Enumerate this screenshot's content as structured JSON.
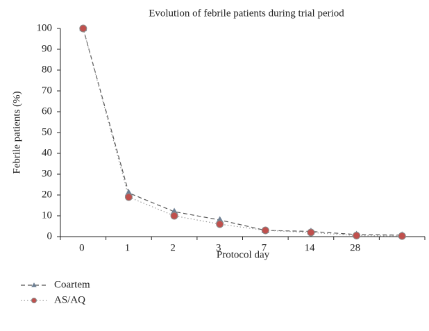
{
  "chart_data": {
    "type": "line",
    "title": "Evolution of febrile patients during trial period",
    "xlabel": "Protocol day",
    "ylabel": "Febrile patients (%)",
    "categories": [
      "0",
      "1",
      "2",
      "3",
      "7",
      "14",
      "28",
      null
    ],
    "series": [
      {
        "name": "Coartem",
        "color": "#6d7f93",
        "line_color": "#555555",
        "line_style": "dashed",
        "marker": "triangle",
        "values": [
          100,
          21,
          12,
          8,
          3,
          2.5,
          1,
          0.7
        ]
      },
      {
        "name": "AS/AQ",
        "color": "#c0504d",
        "line_color": "#999999",
        "line_style": "dotted",
        "marker": "circle",
        "values": [
          100,
          19,
          10,
          6,
          3,
          2,
          0.5,
          0.3
        ]
      }
    ],
    "ylim": [
      0,
      100
    ],
    "yticks": [
      0,
      10,
      20,
      30,
      40,
      50,
      60,
      70,
      80,
      90,
      100
    ],
    "legend": "bottom-left"
  }
}
